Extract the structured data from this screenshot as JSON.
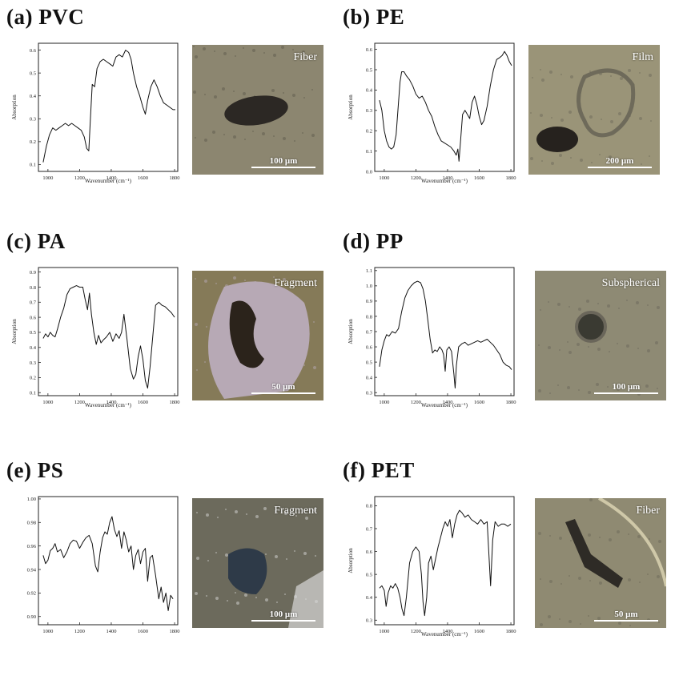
{
  "panels": [
    {
      "label": "(a) PVC",
      "micro_label": "Fiber",
      "scale": "100 μm",
      "colors": {
        "bg": "#8c8670",
        "particle": "#2c2824",
        "halo": "#5e5a4c"
      },
      "chart_data": {
        "type": "line",
        "title": "",
        "xlabel": "Wavenumber (cm⁻¹)",
        "ylabel": "Absorption",
        "xlim": [
          940,
          1820
        ],
        "ylim": [
          0.07,
          0.63
        ],
        "xticks": [
          1000,
          1200,
          1400,
          1600,
          1800
        ],
        "xtick_labels": [
          "1000",
          "1200",
          "1400",
          "1600",
          "1800"
        ],
        "yticks": [
          0.1,
          0.2,
          0.3,
          0.4,
          0.5,
          0.6
        ],
        "ytick_labels": [
          "0.1",
          "0.2",
          "0.3",
          "0.4",
          "0.5",
          "0.6"
        ],
        "series": [
          {
            "x": [
              970,
              990,
              1010,
              1030,
              1050,
              1070,
              1090,
              1110,
              1130,
              1150,
              1170,
              1190,
              1210,
              1230,
              1245,
              1258,
              1268,
              1280,
              1295,
              1310,
              1330,
              1350,
              1370,
              1390,
              1410,
              1430,
              1450,
              1470,
              1490,
              1510,
              1525,
              1540,
              1560,
              1580,
              1600,
              1615,
              1630,
              1650,
              1670,
              1690,
              1710,
              1730,
              1750,
              1770,
              1790,
              1805
            ],
            "y": [
              0.11,
              0.18,
              0.23,
              0.26,
              0.25,
              0.26,
              0.27,
              0.28,
              0.27,
              0.28,
              0.27,
              0.26,
              0.25,
              0.22,
              0.17,
              0.16,
              0.3,
              0.45,
              0.44,
              0.52,
              0.55,
              0.56,
              0.55,
              0.54,
              0.53,
              0.57,
              0.58,
              0.57,
              0.6,
              0.59,
              0.56,
              0.5,
              0.44,
              0.4,
              0.35,
              0.32,
              0.38,
              0.44,
              0.47,
              0.44,
              0.4,
              0.37,
              0.36,
              0.35,
              0.34,
              0.34
            ]
          }
        ]
      }
    },
    {
      "label": "(b) PE",
      "micro_label": "Film",
      "scale": "200 μm",
      "colors": {
        "bg": "#9a9478",
        "particle": "#26221e",
        "halo": "#6e6a5a"
      },
      "chart_data": {
        "type": "line",
        "title": "",
        "xlabel": "Wavenumber (cm⁻¹)",
        "ylabel": "Absorption",
        "xlim": [
          940,
          1820
        ],
        "ylim": [
          0.0,
          0.63
        ],
        "xticks": [
          1000,
          1200,
          1400,
          1600,
          1800
        ],
        "xtick_labels": [
          "1000",
          "1200",
          "1400",
          "1600",
          "1800"
        ],
        "yticks": [
          0.0,
          0.1,
          0.2,
          0.3,
          0.4,
          0.5,
          0.6
        ],
        "ytick_labels": [
          "0.0",
          "0.1",
          "0.2",
          "0.3",
          "0.4",
          "0.5",
          "0.6"
        ],
        "series": [
          {
            "x": [
              970,
              985,
              1000,
              1015,
              1030,
              1045,
              1060,
              1075,
              1090,
              1100,
              1110,
              1125,
              1140,
              1160,
              1180,
              1200,
              1220,
              1240,
              1260,
              1280,
              1300,
              1320,
              1340,
              1360,
              1380,
              1400,
              1420,
              1440,
              1455,
              1465,
              1472,
              1480,
              1495,
              1510,
              1525,
              1540,
              1555,
              1570,
              1585,
              1600,
              1615,
              1630,
              1650,
              1670,
              1690,
              1710,
              1730,
              1745,
              1760,
              1775,
              1790,
              1805
            ],
            "y": [
              0.35,
              0.3,
              0.2,
              0.15,
              0.12,
              0.11,
              0.12,
              0.18,
              0.34,
              0.44,
              0.49,
              0.49,
              0.47,
              0.45,
              0.42,
              0.38,
              0.36,
              0.37,
              0.34,
              0.3,
              0.27,
              0.22,
              0.18,
              0.15,
              0.14,
              0.13,
              0.12,
              0.1,
              0.08,
              0.11,
              0.05,
              0.13,
              0.28,
              0.3,
              0.28,
              0.26,
              0.34,
              0.37,
              0.33,
              0.27,
              0.23,
              0.25,
              0.32,
              0.42,
              0.5,
              0.55,
              0.56,
              0.57,
              0.59,
              0.57,
              0.54,
              0.52
            ]
          }
        ]
      }
    },
    {
      "label": "(c) PA",
      "micro_label": "Fragment",
      "scale": "50 μm",
      "colors": {
        "bg": "#857a58",
        "particle": "#2b231b",
        "halo": "#b7a9b5"
      },
      "chart_data": {
        "type": "line",
        "title": "",
        "xlabel": "Wavenumber (cm⁻¹)",
        "ylabel": "Absorption",
        "xlim": [
          940,
          1820
        ],
        "ylim": [
          0.08,
          0.93
        ],
        "xticks": [
          1000,
          1200,
          1400,
          1600,
          1800
        ],
        "xtick_labels": [
          "1000",
          "1200",
          "1400",
          "1600",
          "1800"
        ],
        "yticks": [
          0.1,
          0.2,
          0.3,
          0.4,
          0.5,
          0.6,
          0.7,
          0.8,
          0.9
        ],
        "ytick_labels": [
          "0.1",
          "0.2",
          "0.3",
          "0.4",
          "0.5",
          "0.6",
          "0.7",
          "0.8",
          "0.9"
        ],
        "series": [
          {
            "x": [
              970,
              985,
              1000,
              1015,
              1030,
              1045,
              1060,
              1080,
              1100,
              1120,
              1140,
              1160,
              1180,
              1200,
              1220,
              1235,
              1250,
              1262,
              1275,
              1290,
              1305,
              1320,
              1335,
              1350,
              1370,
              1390,
              1410,
              1430,
              1450,
              1465,
              1480,
              1500,
              1520,
              1540,
              1555,
              1570,
              1585,
              1600,
              1615,
              1630,
              1645,
              1660,
              1680,
              1700,
              1720,
              1740,
              1760,
              1780,
              1800
            ],
            "y": [
              0.46,
              0.49,
              0.47,
              0.5,
              0.48,
              0.47,
              0.52,
              0.6,
              0.66,
              0.75,
              0.79,
              0.8,
              0.81,
              0.8,
              0.8,
              0.72,
              0.65,
              0.76,
              0.62,
              0.5,
              0.42,
              0.48,
              0.43,
              0.45,
              0.47,
              0.5,
              0.44,
              0.49,
              0.46,
              0.5,
              0.62,
              0.45,
              0.26,
              0.19,
              0.22,
              0.34,
              0.41,
              0.32,
              0.18,
              0.13,
              0.27,
              0.45,
              0.68,
              0.7,
              0.68,
              0.67,
              0.65,
              0.63,
              0.6
            ]
          }
        ]
      }
    },
    {
      "label": "(d) PP",
      "micro_label": "Subspherical",
      "scale": "100 μm",
      "colors": {
        "bg": "#8e8a74",
        "particle": "#3a3a32",
        "halo": "#6a665a"
      },
      "chart_data": {
        "type": "line",
        "title": "",
        "xlabel": "Wavenumber (cm⁻¹)",
        "ylabel": "Absorption",
        "xlim": [
          940,
          1820
        ],
        "ylim": [
          0.28,
          1.12
        ],
        "xticks": [
          1000,
          1200,
          1400,
          1600,
          1800
        ],
        "xtick_labels": [
          "1000",
          "1200",
          "1400",
          "1600",
          "1800"
        ],
        "yticks": [
          0.3,
          0.4,
          0.5,
          0.6,
          0.7,
          0.8,
          0.9,
          1.0,
          1.1
        ],
        "ytick_labels": [
          "0.3",
          "0.4",
          "0.5",
          "0.6",
          "0.7",
          "0.8",
          "0.9",
          "1.0",
          "1.1"
        ],
        "series": [
          {
            "x": [
              970,
              985,
              1000,
              1015,
              1030,
              1050,
              1070,
              1090,
              1110,
              1130,
              1150,
              1170,
              1190,
              1210,
              1230,
              1245,
              1260,
              1275,
              1290,
              1305,
              1320,
              1335,
              1350,
              1365,
              1375,
              1385,
              1395,
              1410,
              1425,
              1440,
              1448,
              1456,
              1470,
              1490,
              1510,
              1530,
              1550,
              1570,
              1590,
              1610,
              1630,
              1650,
              1670,
              1690,
              1710,
              1730,
              1750,
              1770,
              1790,
              1805
            ],
            "y": [
              0.47,
              0.58,
              0.64,
              0.68,
              0.67,
              0.7,
              0.69,
              0.72,
              0.83,
              0.92,
              0.97,
              1.0,
              1.02,
              1.03,
              1.02,
              0.98,
              0.9,
              0.78,
              0.65,
              0.56,
              0.58,
              0.57,
              0.6,
              0.58,
              0.55,
              0.44,
              0.58,
              0.6,
              0.57,
              0.42,
              0.33,
              0.48,
              0.6,
              0.62,
              0.63,
              0.61,
              0.62,
              0.63,
              0.64,
              0.63,
              0.64,
              0.65,
              0.63,
              0.61,
              0.58,
              0.55,
              0.5,
              0.48,
              0.47,
              0.45
            ]
          }
        ]
      }
    },
    {
      "label": "(e) PS",
      "micro_label": "Fragment",
      "scale": "100 μm",
      "colors": {
        "bg": "#6c6a5c",
        "particle": "#2e3a48",
        "halo": "#d8d8d8"
      },
      "chart_data": {
        "type": "line",
        "title": "",
        "xlabel": "",
        "ylabel": "",
        "xlim": [
          940,
          1820
        ],
        "ylim": [
          0.893,
          1.002
        ],
        "xticks": [
          1000,
          1200,
          1400,
          1600,
          1800
        ],
        "xtick_labels": [
          "1000",
          "1200",
          "1400",
          "1600",
          "1800"
        ],
        "yticks": [
          0.9,
          0.92,
          0.94,
          0.96,
          0.98,
          1.0
        ],
        "ytick_labels": [
          "0.90",
          "0.92",
          "0.94",
          "0.96",
          "0.98",
          "1.00"
        ],
        "series": [
          {
            "x": [
              970,
              985,
              1000,
              1015,
              1030,
              1045,
              1060,
              1080,
              1100,
              1120,
              1140,
              1160,
              1180,
              1200,
              1220,
              1240,
              1260,
              1280,
              1300,
              1315,
              1330,
              1345,
              1360,
              1375,
              1390,
              1405,
              1420,
              1435,
              1450,
              1465,
              1480,
              1495,
              1510,
              1525,
              1540,
              1555,
              1570,
              1585,
              1600,
              1615,
              1630,
              1645,
              1660,
              1680,
              1700,
              1715,
              1730,
              1745,
              1760,
              1775,
              1790
            ],
            "y": [
              0.952,
              0.945,
              0.948,
              0.956,
              0.958,
              0.962,
              0.955,
              0.957,
              0.95,
              0.955,
              0.962,
              0.965,
              0.964,
              0.958,
              0.963,
              0.967,
              0.969,
              0.962,
              0.943,
              0.938,
              0.955,
              0.967,
              0.972,
              0.97,
              0.98,
              0.985,
              0.974,
              0.968,
              0.973,
              0.958,
              0.972,
              0.965,
              0.955,
              0.96,
              0.94,
              0.952,
              0.957,
              0.945,
              0.955,
              0.958,
              0.93,
              0.95,
              0.952,
              0.935,
              0.915,
              0.925,
              0.912,
              0.92,
              0.905,
              0.918,
              0.915
            ]
          }
        ]
      }
    },
    {
      "label": "(f) PET",
      "micro_label": "Fiber",
      "scale": "50 μm",
      "colors": {
        "bg": "#8f8a72",
        "particle": "#2e2b26",
        "halo": "#6c6858"
      },
      "chart_data": {
        "type": "line",
        "title": "",
        "xlabel": "Wavenumber (cm⁻¹)",
        "ylabel": "Absorption",
        "xlim": [
          940,
          1820
        ],
        "ylim": [
          0.28,
          0.84
        ],
        "xticks": [
          1000,
          1200,
          1400,
          1600,
          1800
        ],
        "xtick_labels": [
          "1000",
          "1200",
          "1400",
          "1600",
          "1800"
        ],
        "yticks": [
          0.3,
          0.4,
          0.5,
          0.6,
          0.7,
          0.8
        ],
        "ytick_labels": [
          "0.3",
          "0.4",
          "0.5",
          "0.6",
          "0.7",
          "0.8"
        ],
        "series": [
          {
            "x": [
              970,
              985,
              1000,
              1012,
              1025,
              1040,
              1055,
              1070,
              1085,
              1100,
              1112,
              1125,
              1140,
              1160,
              1180,
              1200,
              1220,
              1235,
              1245,
              1255,
              1268,
              1280,
              1295,
              1310,
              1325,
              1340,
              1355,
              1370,
              1385,
              1400,
              1415,
              1430,
              1445,
              1460,
              1475,
              1490,
              1510,
              1530,
              1550,
              1570,
              1590,
              1610,
              1630,
              1650,
              1660,
              1672,
              1685,
              1700,
              1720,
              1740,
              1760,
              1780,
              1800
            ],
            "y": [
              0.44,
              0.45,
              0.43,
              0.36,
              0.42,
              0.45,
              0.44,
              0.46,
              0.44,
              0.4,
              0.35,
              0.32,
              0.4,
              0.55,
              0.6,
              0.62,
              0.6,
              0.5,
              0.38,
              0.32,
              0.4,
              0.55,
              0.58,
              0.52,
              0.57,
              0.62,
              0.66,
              0.7,
              0.73,
              0.71,
              0.74,
              0.66,
              0.72,
              0.76,
              0.78,
              0.77,
              0.75,
              0.76,
              0.74,
              0.73,
              0.72,
              0.74,
              0.72,
              0.73,
              0.6,
              0.45,
              0.65,
              0.73,
              0.71,
              0.72,
              0.72,
              0.71,
              0.72
            ]
          }
        ]
      }
    }
  ]
}
